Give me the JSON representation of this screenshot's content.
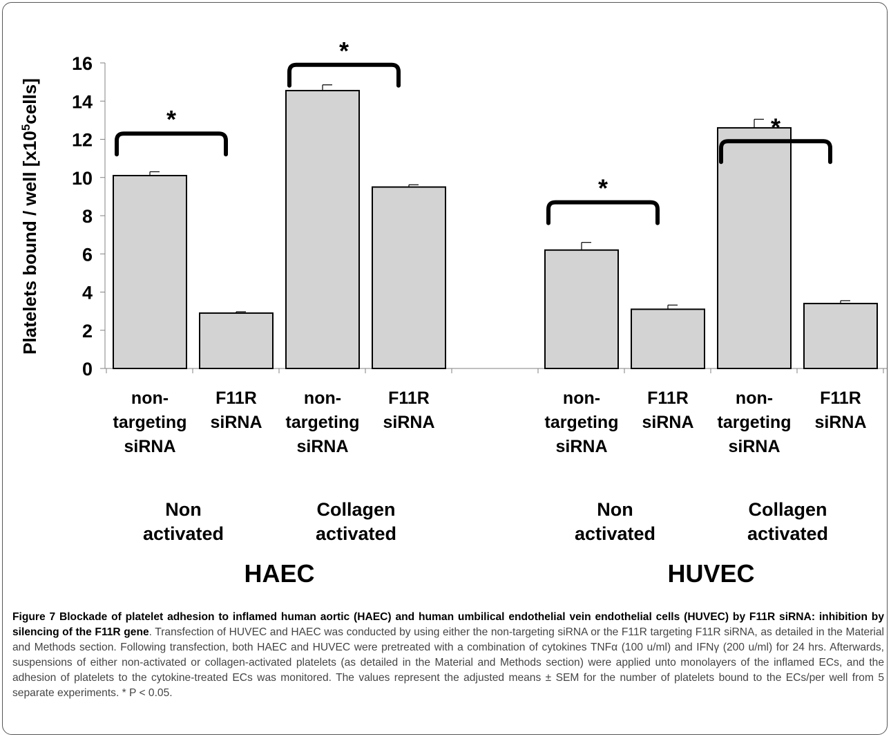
{
  "chart_data": {
    "type": "bar",
    "ylabel_parts": [
      "Platelets bound / well [x10",
      "5",
      "cells]"
    ],
    "ylim": [
      0,
      16
    ],
    "yticks": [
      "0",
      "2",
      "4",
      "6",
      "8",
      "10",
      "12",
      "14",
      "16"
    ],
    "bars": [
      {
        "category": "non-targeting siRNA",
        "label_lines": [
          "non-",
          "targeting",
          "siRNA"
        ],
        "value": 10.1,
        "error": 0.2,
        "activation": "Non activated",
        "cell_type": "HAEC"
      },
      {
        "category": "F11R siRNA",
        "label_lines": [
          "F11R",
          "siRNA"
        ],
        "value": 2.9,
        "error": 0.07,
        "activation": "Non activated",
        "cell_type": "HAEC"
      },
      {
        "category": "non-targeting siRNA",
        "label_lines": [
          "non-",
          "targeting",
          "siRNA"
        ],
        "value": 14.55,
        "error": 0.3,
        "activation": "Collagen activated",
        "cell_type": "HAEC"
      },
      {
        "category": "F11R siRNA",
        "label_lines": [
          "F11R",
          "siRNA"
        ],
        "value": 9.5,
        "error": 0.12,
        "activation": "Collagen activated",
        "cell_type": "HAEC"
      },
      {
        "category": "non-targeting siRNA",
        "label_lines": [
          "non-",
          "targeting",
          "siRNA"
        ],
        "value": 6.2,
        "error": 0.4,
        "activation": "Non activated",
        "cell_type": "HUVEC"
      },
      {
        "category": "F11R siRNA",
        "label_lines": [
          "F11R",
          "siRNA"
        ],
        "value": 3.1,
        "error": 0.22,
        "activation": "Non activated",
        "cell_type": "HUVEC"
      },
      {
        "category": "non-targeting siRNA",
        "label_lines": [
          "non-",
          "targeting",
          "siRNA"
        ],
        "value": 12.6,
        "error": 0.45,
        "activation": "Collagen activated",
        "cell_type": "HUVEC"
      },
      {
        "category": "F11R siRNA",
        "label_lines": [
          "F11R",
          "siRNA"
        ],
        "value": 3.4,
        "error": 0.15,
        "activation": "Collagen activated",
        "cell_type": "HUVEC"
      }
    ],
    "activation_groups": [
      {
        "lines": [
          "Non",
          "activated"
        ]
      },
      {
        "lines": [
          "Collagen",
          "activated"
        ]
      },
      {
        "lines": [
          "Non",
          "activated"
        ]
      },
      {
        "lines": [
          "Collagen",
          "activated"
        ]
      }
    ],
    "cell_types": [
      "HAEC",
      "HUVEC"
    ],
    "significance": [
      {
        "bars": [
          0,
          1
        ],
        "label": "*",
        "bracket_y": 12.3
      },
      {
        "bars": [
          2,
          3
        ],
        "label": "*",
        "bracket_y": 15.9
      },
      {
        "bars": [
          4,
          5
        ],
        "label": "*",
        "bracket_y": 8.7
      },
      {
        "bars": [
          6,
          7
        ],
        "label": "*",
        "bracket_y": 11.9
      }
    ],
    "bar_color": "#d3d3d3",
    "grid": false
  },
  "caption": {
    "bold": "Figure 7 Blockade of platelet adhesion to inflamed human aortic (HAEC) and human umbilical endothelial vein endothelial cells (HUVEC) by F11R siRNA: inhibition by silencing of the F11R gene",
    "text": ". Transfection of HUVEC and HAEC was conducted by using either the non-targeting siRNA or the F11R targeting F11R siRNA, as detailed in the Material and Methods section. Following transfection, both HAEC and HUVEC were pretreated with a combination of cytokines TNFα (100 u/ml) and IFNγ (200 u/ml) for 24 hrs. Afterwards, suspensions of either non-activated or collagen-activated platelets (as detailed in the Material and Methods section) were applied unto monolayers of the inflamed ECs, and the adhesion of platelets to the cytokine-treated ECs was monitored. The values represent the adjusted means ± SEM for the number of platelets bound to the ECs/per well from 5 separate experiments. * P < 0.05."
  }
}
